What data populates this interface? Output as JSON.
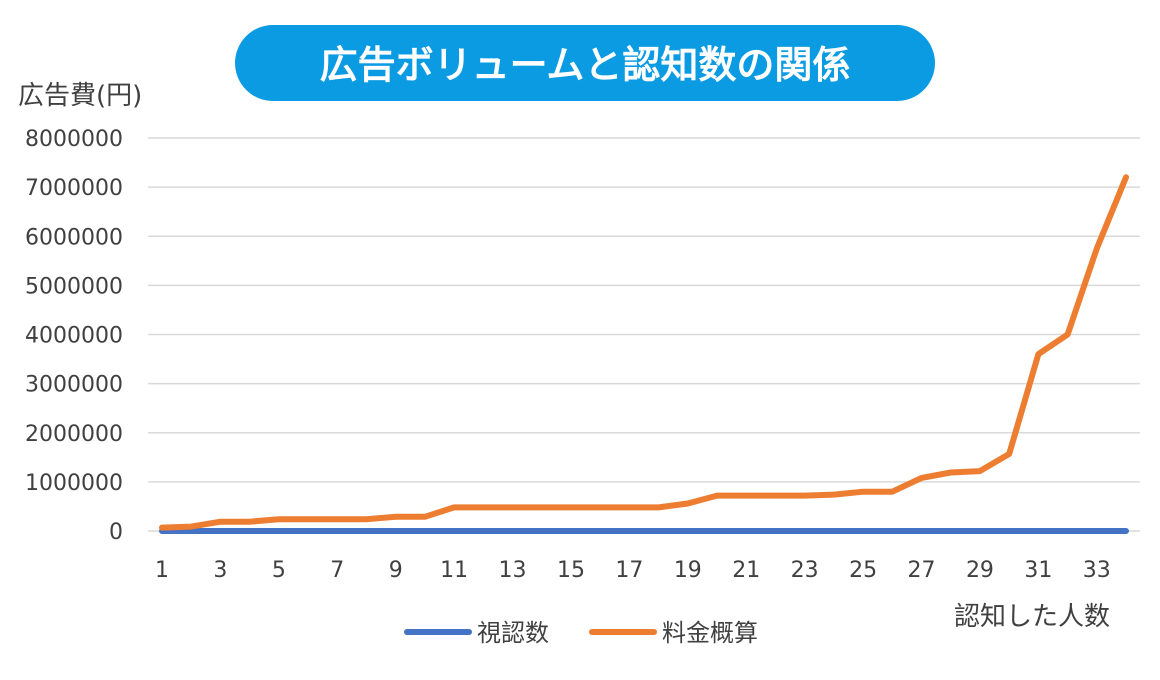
{
  "colors": {
    "title_bg": "#0b9be3",
    "series_1": "#4472c4",
    "series_2": "#ed7d31"
  },
  "chart_data": {
    "type": "line",
    "title": "広告ボリュームと認知数の関係",
    "ylabel": "広告費(円)",
    "xlabel": "認知した人数",
    "ylim": [
      0,
      8000000
    ],
    "y_ticks": [
      0,
      1000000,
      2000000,
      3000000,
      4000000,
      5000000,
      6000000,
      7000000,
      8000000
    ],
    "x": [
      1,
      2,
      3,
      4,
      5,
      6,
      7,
      8,
      9,
      10,
      11,
      12,
      13,
      14,
      15,
      16,
      17,
      18,
      19,
      20,
      21,
      22,
      23,
      24,
      25,
      26,
      27,
      28,
      29,
      30,
      31,
      32,
      33,
      34
    ],
    "x_tick_labels": [
      1,
      3,
      5,
      7,
      9,
      11,
      13,
      15,
      17,
      19,
      21,
      23,
      25,
      27,
      29,
      31,
      33
    ],
    "grid": true,
    "legend_position": "bottom",
    "series": [
      {
        "name": "視認数",
        "color": "#4472c4",
        "values": [
          1,
          2,
          3,
          4,
          5,
          6,
          7,
          8,
          9,
          10,
          11,
          12,
          13,
          14,
          15,
          16,
          17,
          18,
          19,
          20,
          21,
          22,
          23,
          24,
          25,
          26,
          27,
          28,
          29,
          30,
          31,
          32,
          33,
          34
        ]
      },
      {
        "name": "料金概算",
        "color": "#ed7d31",
        "values": [
          70000,
          90000,
          190000,
          190000,
          240000,
          240000,
          240000,
          240000,
          290000,
          290000,
          480000,
          480000,
          480000,
          480000,
          480000,
          480000,
          480000,
          480000,
          560000,
          720000,
          720000,
          720000,
          720000,
          740000,
          800000,
          800000,
          1080000,
          1190000,
          1220000,
          1570000,
          3600000,
          4000000,
          5750000,
          7200000
        ]
      }
    ]
  }
}
